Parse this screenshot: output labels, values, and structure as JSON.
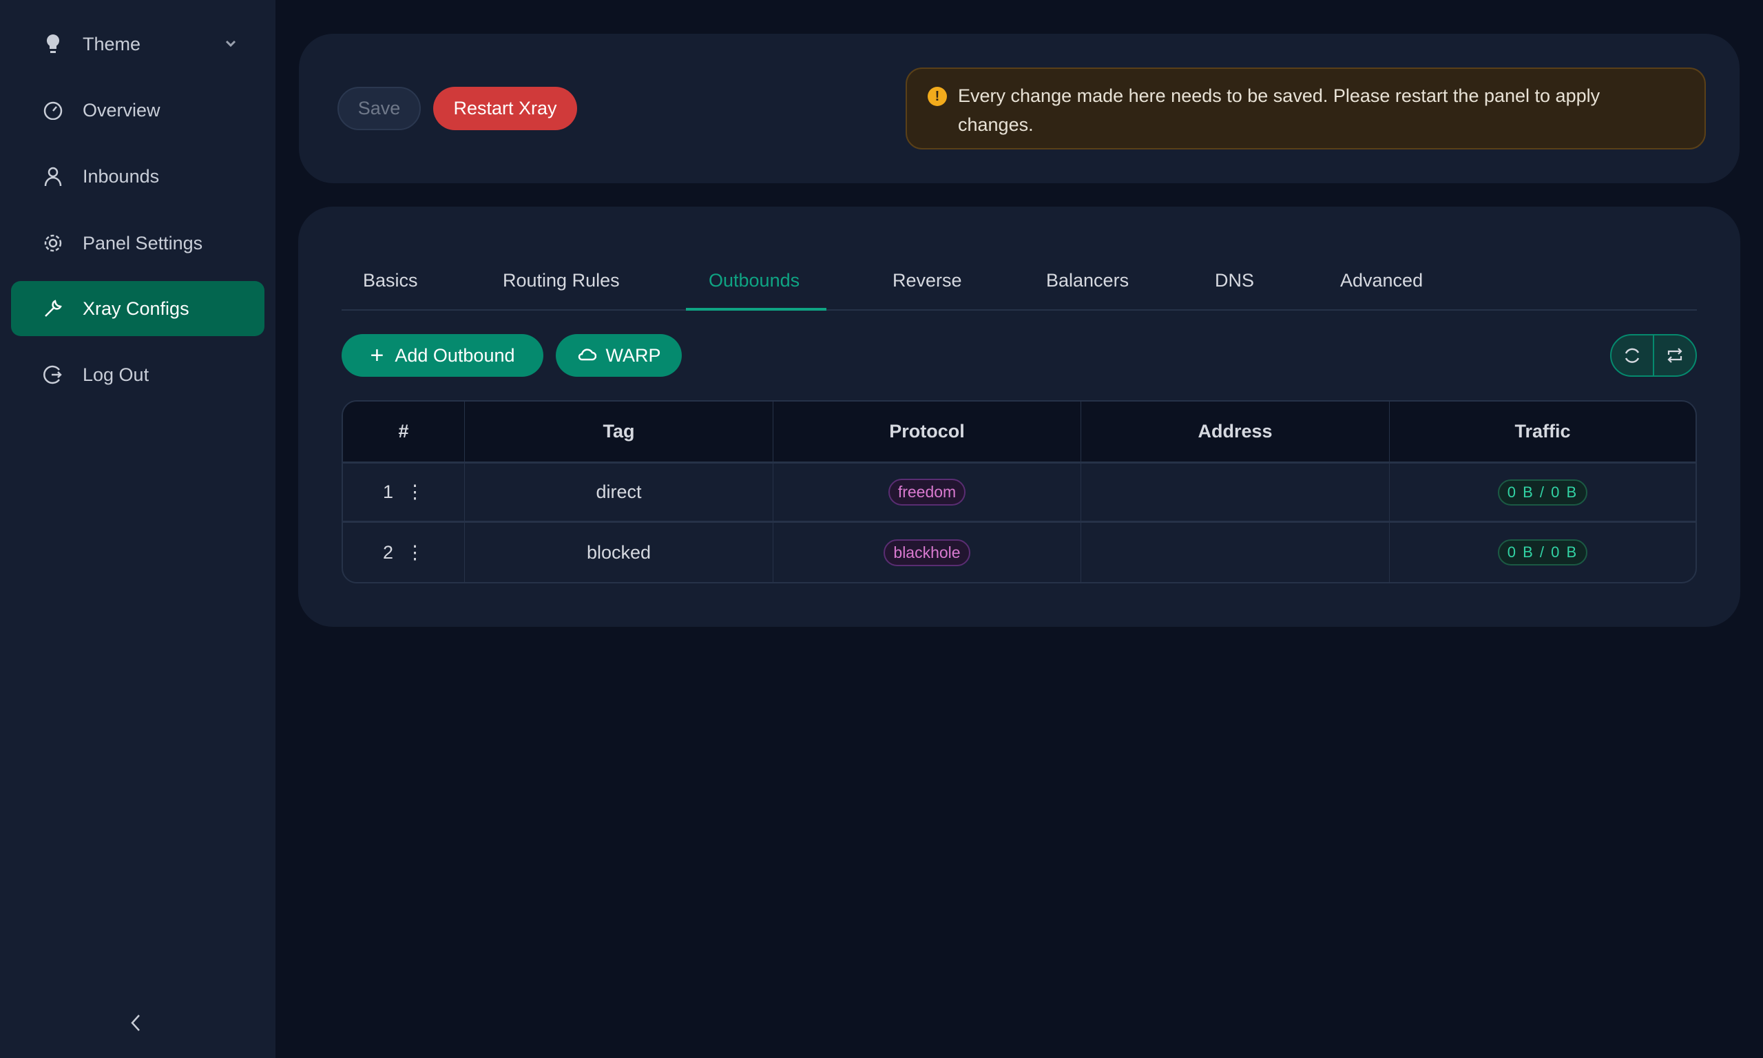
{
  "sidebar": {
    "items": [
      {
        "label": "Theme",
        "icon": "bulb-icon"
      },
      {
        "label": "Overview",
        "icon": "dashboard-icon"
      },
      {
        "label": "Inbounds",
        "icon": "user-icon"
      },
      {
        "label": "Panel Settings",
        "icon": "gear-icon"
      },
      {
        "label": "Xray Configs",
        "icon": "wrench-icon",
        "active": true
      },
      {
        "label": "Log Out",
        "icon": "logout-icon"
      }
    ],
    "collapse": "<"
  },
  "toolbar": {
    "save": "Save",
    "restart": "Restart Xray"
  },
  "alert": {
    "text": "Every change made here needs to be saved. Please restart the panel to apply changes."
  },
  "tabs": [
    "Basics",
    "Routing Rules",
    "Outbounds",
    "Reverse",
    "Balancers",
    "DNS",
    "Advanced"
  ],
  "active_tab": "Outbounds",
  "actions": {
    "add": "Add Outbound",
    "warp": "WARP"
  },
  "table": {
    "headers": [
      "#",
      "Tag",
      "Protocol",
      "Address",
      "Traffic"
    ],
    "rows": [
      {
        "index": "1",
        "tag": "direct",
        "protocol": "freedom",
        "address": "",
        "traffic": "0 B / 0 B"
      },
      {
        "index": "2",
        "tag": "blocked",
        "protocol": "blackhole",
        "address": "",
        "traffic": "0 B / 0 B"
      }
    ]
  },
  "colors": {
    "accent": "#058a6e",
    "danger": "#d03a3a",
    "warning": "#f2ab1c"
  }
}
